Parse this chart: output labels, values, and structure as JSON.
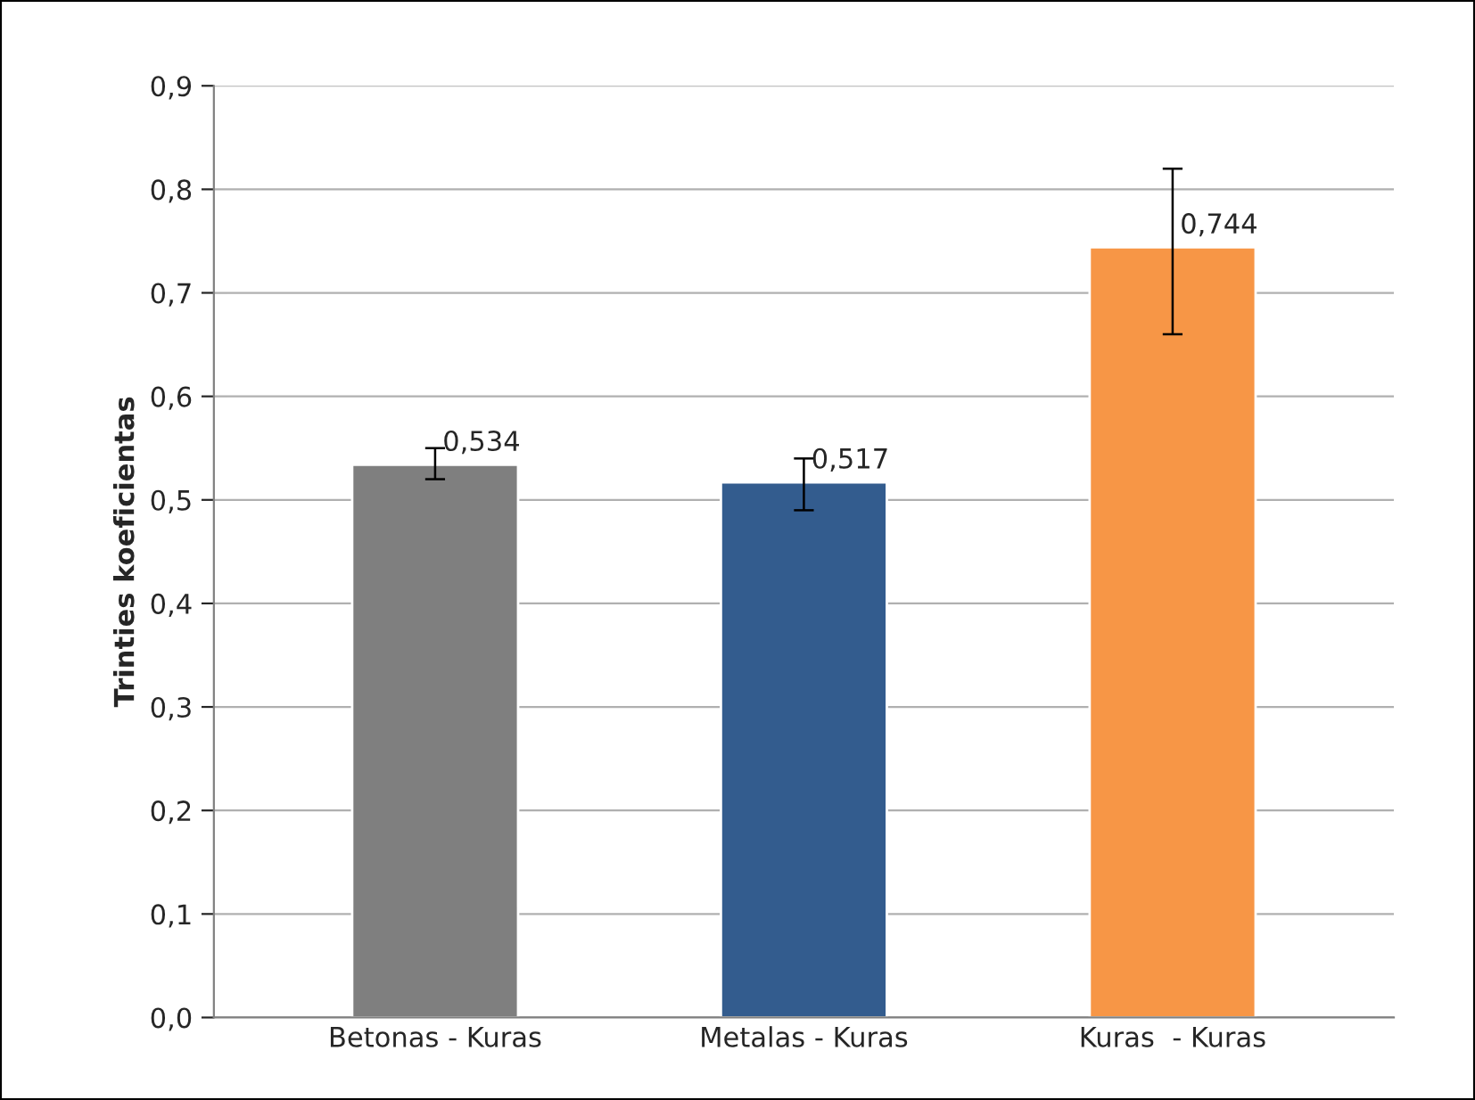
{
  "chart_data": {
    "type": "bar",
    "ylabel": "Trinties koeficientas",
    "categories": [
      "Betonas - Kuras",
      "Metalas - Kuras",
      "Kuras  - Kuras"
    ],
    "values": [
      0.534,
      0.517,
      0.744
    ],
    "colors": [
      "#7f7f7f",
      "#335c8e",
      "#f79646"
    ],
    "errors": [
      [
        0.52,
        0.55
      ],
      [
        0.49,
        0.54
      ],
      [
        0.66,
        0.82
      ]
    ],
    "value_labels": [
      "0,534",
      "0,517",
      "0,744"
    ],
    "ylim": [
      0,
      0.9
    ],
    "yticks": [
      {
        "value": 0,
        "label": "0,0"
      },
      {
        "value": 0.1,
        "label": "0,1"
      },
      {
        "value": 0.2,
        "label": "0,2"
      },
      {
        "value": 0.3,
        "label": "0,3"
      },
      {
        "value": 0.4,
        "label": "0,4"
      },
      {
        "value": 0.5,
        "label": "0,5"
      },
      {
        "value": 0.6,
        "label": "0,6"
      },
      {
        "value": 0.7,
        "label": "0,7"
      },
      {
        "value": 0.8,
        "label": "0,8"
      },
      {
        "value": 0.9,
        "label": "0,9"
      }
    ],
    "grid": "y",
    "legend": false
  }
}
